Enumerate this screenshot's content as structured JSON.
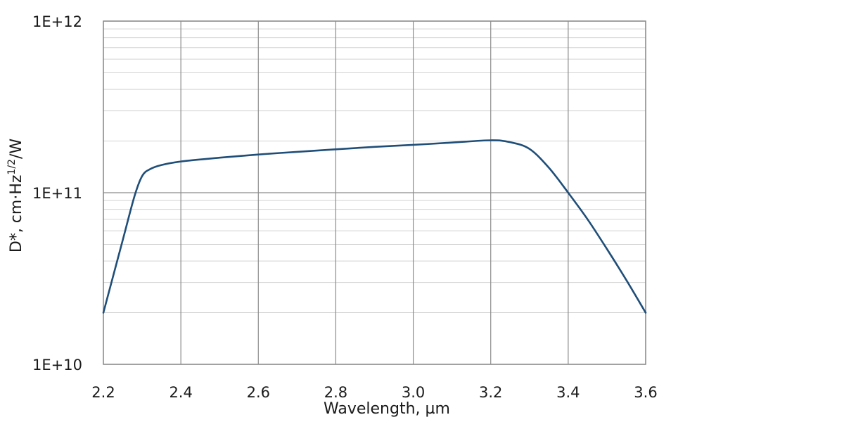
{
  "chart_data": {
    "type": "line",
    "xlabel": "Wavelength, µm",
    "ylabel_main": "D*, cm·Hz",
    "ylabel_sup": "1/2",
    "ylabel_tail": "/W",
    "y_scale": "log",
    "xlim": [
      2.2,
      3.6
    ],
    "ylim": [
      10000000000.0,
      1000000000000.0
    ],
    "x_ticks": [
      {
        "value": 2.2,
        "label": "2.2"
      },
      {
        "value": 2.4,
        "label": "2.4"
      },
      {
        "value": 2.6,
        "label": "2.6"
      },
      {
        "value": 2.8,
        "label": "2.8"
      },
      {
        "value": 3.0,
        "label": "3.0"
      },
      {
        "value": 3.2,
        "label": "3.2"
      },
      {
        "value": 3.4,
        "label": "3.4"
      },
      {
        "value": 3.6,
        "label": "3.6"
      }
    ],
    "y_ticks": [
      {
        "value": 10000000000.0,
        "label": "1E+10"
      },
      {
        "value": 100000000000.0,
        "label": "1E+11"
      },
      {
        "value": 1000000000000.0,
        "label": "1E+12"
      }
    ],
    "grid": true,
    "legend": "none",
    "series": [
      {
        "color": "#1f4e79",
        "x": [
          2.2,
          2.25,
          2.28,
          2.3,
          2.32,
          2.35,
          2.4,
          2.5,
          2.6,
          2.7,
          2.8,
          2.9,
          3.0,
          3.1,
          3.2,
          3.25,
          3.3,
          3.35,
          3.4,
          3.45,
          3.5,
          3.55,
          3.6
        ],
        "y": [
          20000000000.0,
          53000000000.0,
          95000000000.0,
          125000000000.0,
          137000000000.0,
          145000000000.0,
          152000000000.0,
          160000000000.0,
          167000000000.0,
          173000000000.0,
          179000000000.0,
          185000000000.0,
          190000000000.0,
          196000000000.0,
          202000000000.0,
          197000000000.0,
          180000000000.0,
          140000000000.0,
          100000000000.0,
          70000000000.0,
          47000000000.0,
          31000000000.0,
          20000000000.0
        ]
      }
    ]
  }
}
